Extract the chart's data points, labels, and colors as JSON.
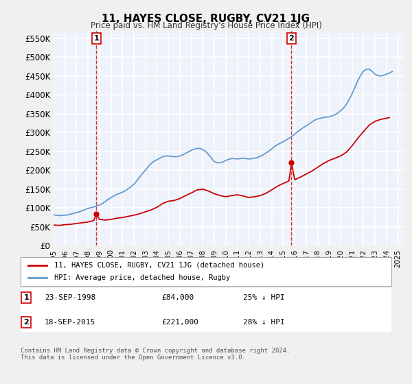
{
  "title": "11, HAYES CLOSE, RUGBY, CV21 1JG",
  "subtitle": "Price paid vs. HM Land Registry's House Price Index (HPI)",
  "ylabel_ticks": [
    "£0",
    "£50K",
    "£100K",
    "£150K",
    "£200K",
    "£250K",
    "£300K",
    "£350K",
    "£400K",
    "£450K",
    "£500K",
    "£550K"
  ],
  "ytick_vals": [
    0,
    50000,
    100000,
    150000,
    200000,
    250000,
    300000,
    350000,
    400000,
    450000,
    500000,
    550000
  ],
  "ylim": [
    0,
    570000
  ],
  "xlim_start": 1995.0,
  "xlim_end": 2025.5,
  "background_color": "#e8eef8",
  "plot_bg_color": "#eef2fb",
  "grid_color": "#ffffff",
  "red_line_color": "#cc0000",
  "blue_line_color": "#6699cc",
  "marker1_x": 1998.73,
  "marker2_x": 2015.72,
  "marker1_label": "1",
  "marker2_label": "2",
  "marker1_price": 84000,
  "marker2_price": 221000,
  "legend_label_red": "11, HAYES CLOSE, RUGBY, CV21 1JG (detached house)",
  "legend_label_blue": "HPI: Average price, detached house, Rugby",
  "annotation1_date": "23-SEP-1998",
  "annotation1_price": "£84,000",
  "annotation1_pct": "25% ↓ HPI",
  "annotation2_date": "18-SEP-2015",
  "annotation2_price": "£221,000",
  "annotation2_pct": "28% ↓ HPI",
  "footnote": "Contains HM Land Registry data © Crown copyright and database right 2024.\nThis data is licensed under the Open Government Licence v3.0.",
  "hpi_years": [
    1995.0,
    1995.25,
    1995.5,
    1995.75,
    1996.0,
    1996.25,
    1996.5,
    1996.75,
    1997.0,
    1997.25,
    1997.5,
    1997.75,
    1998.0,
    1998.25,
    1998.5,
    1998.75,
    1999.0,
    1999.25,
    1999.5,
    1999.75,
    2000.0,
    2000.25,
    2000.5,
    2000.75,
    2001.0,
    2001.25,
    2001.5,
    2001.75,
    2002.0,
    2002.25,
    2002.5,
    2002.75,
    2003.0,
    2003.25,
    2003.5,
    2003.75,
    2004.0,
    2004.25,
    2004.5,
    2004.75,
    2005.0,
    2005.25,
    2005.5,
    2005.75,
    2006.0,
    2006.25,
    2006.5,
    2006.75,
    2007.0,
    2007.25,
    2007.5,
    2007.75,
    2008.0,
    2008.25,
    2008.5,
    2008.75,
    2009.0,
    2009.25,
    2009.5,
    2009.75,
    2010.0,
    2010.25,
    2010.5,
    2010.75,
    2011.0,
    2011.25,
    2011.5,
    2011.75,
    2012.0,
    2012.25,
    2012.5,
    2012.75,
    2013.0,
    2013.25,
    2013.5,
    2013.75,
    2014.0,
    2014.25,
    2014.5,
    2014.75,
    2015.0,
    2015.25,
    2015.5,
    2015.75,
    2016.0,
    2016.25,
    2016.5,
    2016.75,
    2017.0,
    2017.25,
    2017.5,
    2017.75,
    2018.0,
    2018.25,
    2018.5,
    2018.75,
    2019.0,
    2019.25,
    2019.5,
    2019.75,
    2020.0,
    2020.25,
    2020.5,
    2020.75,
    2021.0,
    2021.25,
    2021.5,
    2021.75,
    2022.0,
    2022.25,
    2022.5,
    2022.75,
    2023.0,
    2023.25,
    2023.5,
    2023.75,
    2024.0,
    2024.25,
    2024.5
  ],
  "hpi_values": [
    82000,
    81000,
    80000,
    80500,
    81000,
    82000,
    84000,
    86000,
    88000,
    90000,
    93000,
    96000,
    99000,
    101000,
    103000,
    105000,
    108000,
    112000,
    117000,
    123000,
    128000,
    132000,
    136000,
    139000,
    142000,
    146000,
    151000,
    157000,
    163000,
    172000,
    182000,
    192000,
    200000,
    210000,
    218000,
    224000,
    228000,
    232000,
    236000,
    238000,
    238000,
    237000,
    236000,
    236000,
    238000,
    241000,
    245000,
    249000,
    253000,
    256000,
    258000,
    258000,
    255000,
    250000,
    242000,
    232000,
    223000,
    220000,
    220000,
    222000,
    226000,
    229000,
    231000,
    231000,
    230000,
    231000,
    232000,
    231000,
    230000,
    231000,
    232000,
    234000,
    237000,
    241000,
    246000,
    251000,
    257000,
    263000,
    268000,
    272000,
    276000,
    280000,
    285000,
    290000,
    296000,
    302000,
    308000,
    313000,
    318000,
    323000,
    328000,
    333000,
    336000,
    338000,
    340000,
    341000,
    342000,
    344000,
    347000,
    352000,
    358000,
    365000,
    375000,
    388000,
    403000,
    420000,
    438000,
    452000,
    463000,
    468000,
    468000,
    462000,
    455000,
    451000,
    450000,
    452000,
    455000,
    458000,
    462000
  ],
  "red_years": [
    1995.0,
    1995.5,
    1996.0,
    1996.5,
    1997.0,
    1997.5,
    1998.0,
    1998.5,
    1998.73,
    1999.0,
    1999.5,
    2000.0,
    2000.5,
    2001.0,
    2001.5,
    2002.0,
    2002.5,
    2003.0,
    2003.5,
    2004.0,
    2004.5,
    2005.0,
    2005.5,
    2006.0,
    2006.5,
    2007.0,
    2007.5,
    2008.0,
    2008.5,
    2009.0,
    2009.5,
    2010.0,
    2010.5,
    2011.0,
    2011.5,
    2012.0,
    2012.5,
    2013.0,
    2013.5,
    2014.0,
    2014.5,
    2015.0,
    2015.5,
    2015.72,
    2016.0,
    2016.5,
    2017.0,
    2017.5,
    2018.0,
    2018.5,
    2019.0,
    2019.5,
    2020.0,
    2020.5,
    2021.0,
    2021.5,
    2022.0,
    2022.5,
    2023.0,
    2023.5,
    2024.0,
    2024.25
  ],
  "red_values": [
    55000,
    54000,
    56000,
    57000,
    59000,
    61000,
    63000,
    67000,
    84000,
    70000,
    68000,
    70000,
    73000,
    75000,
    78000,
    81000,
    85000,
    90000,
    95000,
    102000,
    112000,
    118000,
    120000,
    125000,
    133000,
    140000,
    148000,
    150000,
    145000,
    138000,
    133000,
    130000,
    133000,
    135000,
    132000,
    128000,
    130000,
    133000,
    139000,
    148000,
    158000,
    165000,
    172000,
    221000,
    175000,
    182000,
    190000,
    198000,
    208000,
    218000,
    226000,
    232000,
    238000,
    248000,
    265000,
    285000,
    303000,
    320000,
    330000,
    335000,
    338000,
    340000
  ]
}
